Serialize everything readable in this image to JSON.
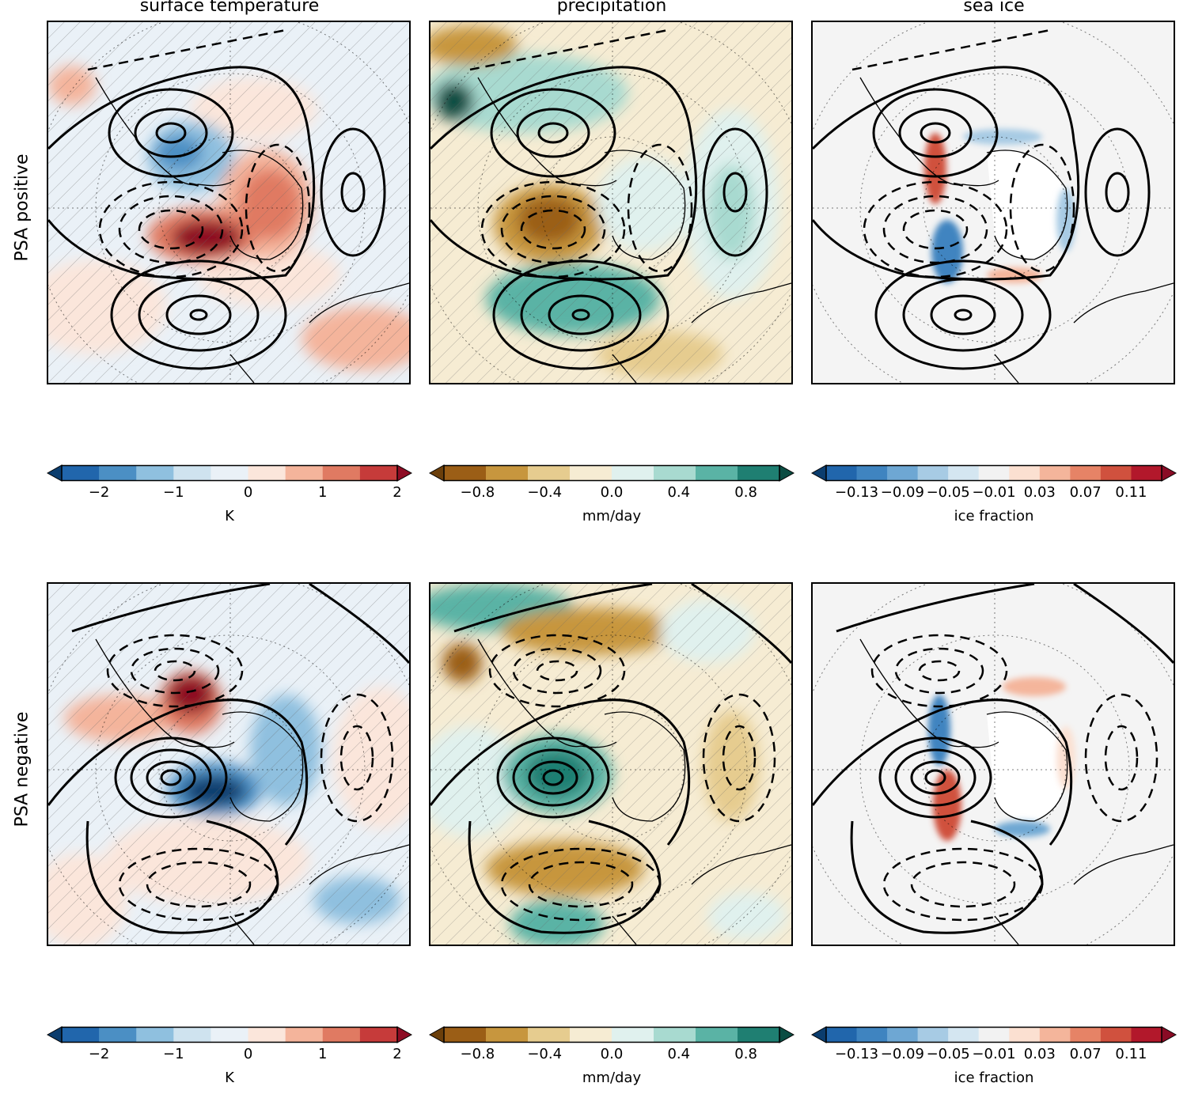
{
  "columns": {
    "temperature": "surface temperature",
    "precipitation": "precipitation",
    "seaice": "sea ice"
  },
  "rows": {
    "positive": "PSA positive",
    "negative": "PSA negative"
  },
  "colorbars": {
    "temperature": {
      "unit": "K",
      "ticks": [
        "−2",
        "−1",
        "0",
        "1",
        "2"
      ],
      "colors": [
        "#0b3d6e",
        "#2166ac",
        "#4b8fc4",
        "#8fc0df",
        "#cfe3ef",
        "#eaf1f7",
        "#fbe6db",
        "#f4b49b",
        "#e07a62",
        "#c63b3a",
        "#8e0c24"
      ]
    },
    "precipitation": {
      "unit": "mm/day",
      "ticks": [
        "−0.8",
        "−0.4",
        "0.0",
        "0.4",
        "0.8"
      ],
      "colors": [
        "#6b3f0b",
        "#9b5e16",
        "#c7963e",
        "#e6cc8f",
        "#f6ecd3",
        "#e0f1ee",
        "#a8dad0",
        "#5ab3a5",
        "#1f7f72",
        "#0b4d43"
      ]
    },
    "seaice": {
      "unit": "ice fraction",
      "ticks": [
        "−0.13",
        "−0.09",
        "−0.05",
        "−0.01",
        "0.03",
        "0.07",
        "0.11"
      ],
      "colors": [
        "#0b3d6e",
        "#2166ac",
        "#3f84c0",
        "#6ea7d3",
        "#a7cbe4",
        "#d4e6f1",
        "#f2f2f2",
        "#fbe0d1",
        "#f4b59b",
        "#e68366",
        "#d0513e",
        "#b2182b",
        "#8a0b25"
      ]
    }
  },
  "colors": {
    "temp_warm": "#c63b3a",
    "temp_cold": "#2166ac",
    "precip_wet": "#2e8c7e",
    "precip_dry": "#b98836",
    "ice_neutral": "#f4f4f4"
  }
}
